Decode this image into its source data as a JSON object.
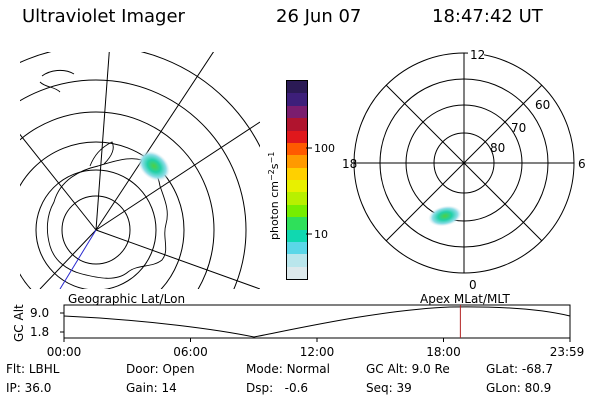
{
  "header": {
    "title": "Ultraviolet Imager",
    "date": "26 Jun 07",
    "time": "18:47:42 UT"
  },
  "colorbar": {
    "label_prefix": "photon cm",
    "label_exp1": "−2",
    "label_s": "s",
    "label_exp2": "−1",
    "ticks": [
      "100",
      "10"
    ],
    "colors": [
      "#2b1a55",
      "#3d1f7a",
      "#7a1d6e",
      "#b0142e",
      "#e0181c",
      "#ff5a00",
      "#ff9a00",
      "#ffd000",
      "#e8f000",
      "#b8f000",
      "#76ee00",
      "#2fe05a",
      "#10d8b0",
      "#5ad7e8",
      "#b9e6ec",
      "#dde9ec"
    ]
  },
  "polar_plot": {
    "hour_labels": {
      "top": "12",
      "bottom": "0",
      "left": "18",
      "right": "6"
    },
    "lat_labels": [
      "60",
      "70",
      "80"
    ]
  },
  "panel_labels": {
    "left": "Geographic Lat/Lon",
    "right": "Apex  MLat/MLT"
  },
  "timeline": {
    "ylabel": "GC Alt",
    "ymax": "9.0",
    "ymin": "1.8",
    "ticks": [
      "00:00",
      "06:00",
      "12:00",
      "18:00",
      "23:59"
    ],
    "marker_time_hours": 18.8,
    "marker_color": "#b22222"
  },
  "info": {
    "flt_label": "Flt:",
    "flt_value": "LBHL",
    "ip_label": "IP:",
    "ip_value": "36.0",
    "door_label": "Door:",
    "door_value": "Open",
    "gain_label": "Gain:",
    "gain_value": "14",
    "mode_label": "Mode:",
    "mode_value": "Normal",
    "dsp_label": "Dsp:",
    "dsp_value": "-0.6",
    "gcalt_label": "GC Alt:",
    "gcalt_value": "9.0 Re",
    "seq_label": "Seq:",
    "seq_value": "39",
    "glat_label": "GLat:",
    "glat_value": "-68.7",
    "glon_label": "GLon:",
    "glon_value": "80.9"
  }
}
